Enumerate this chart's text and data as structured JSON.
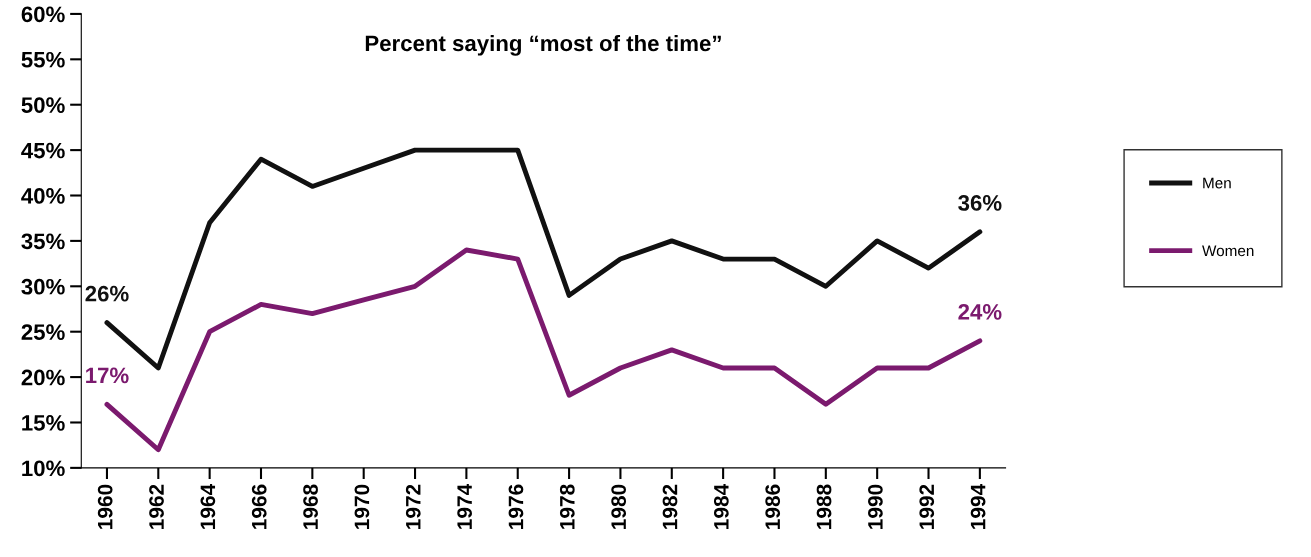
{
  "chart_data": {
    "type": "line",
    "title": "Percent saying “most of the time”",
    "categories": [
      "1960",
      "1962",
      "1964",
      "1966",
      "1968",
      "1970",
      "1972",
      "1974",
      "1976",
      "1978",
      "1980",
      "1982",
      "1984",
      "1986",
      "1988",
      "1990",
      "1992",
      "1994"
    ],
    "series": [
      {
        "name": "Men",
        "color": "#111111",
        "values": [
          26,
          21,
          37,
          44,
          41,
          43,
          45,
          45,
          45,
          29,
          33,
          35,
          33,
          33,
          30,
          35,
          32,
          36
        ],
        "value_labels": [
          "26%",
          null,
          null,
          null,
          null,
          null,
          null,
          null,
          null,
          null,
          null,
          null,
          null,
          null,
          null,
          null,
          null,
          "36%"
        ]
      },
      {
        "name": "Women",
        "color": "#7b1a6e",
        "values": [
          17,
          12,
          25,
          28,
          27,
          28.5,
          30,
          34,
          33,
          18,
          21,
          23,
          21,
          21,
          17,
          21,
          21,
          24
        ],
        "value_labels": [
          "17%",
          null,
          null,
          null,
          null,
          null,
          null,
          null,
          null,
          null,
          null,
          null,
          null,
          null,
          null,
          null,
          null,
          "24%"
        ]
      }
    ],
    "ylim": [
      10,
      60
    ],
    "yticks": [
      {
        "value": 10,
        "label": "10%"
      },
      {
        "value": 15,
        "label": "15%"
      },
      {
        "value": 20,
        "label": "20%"
      },
      {
        "value": 25,
        "label": "25%"
      },
      {
        "value": 30,
        "label": "30%"
      },
      {
        "value": 35,
        "label": "35%"
      },
      {
        "value": 40,
        "label": "40%"
      },
      {
        "value": 45,
        "label": "45%"
      },
      {
        "value": 50,
        "label": "50%"
      },
      {
        "value": 55,
        "label": "55%"
      },
      {
        "value": 60,
        "label": "60%"
      }
    ],
    "grid": false,
    "legend": "right",
    "marker": "none",
    "line_style": "solid"
  }
}
